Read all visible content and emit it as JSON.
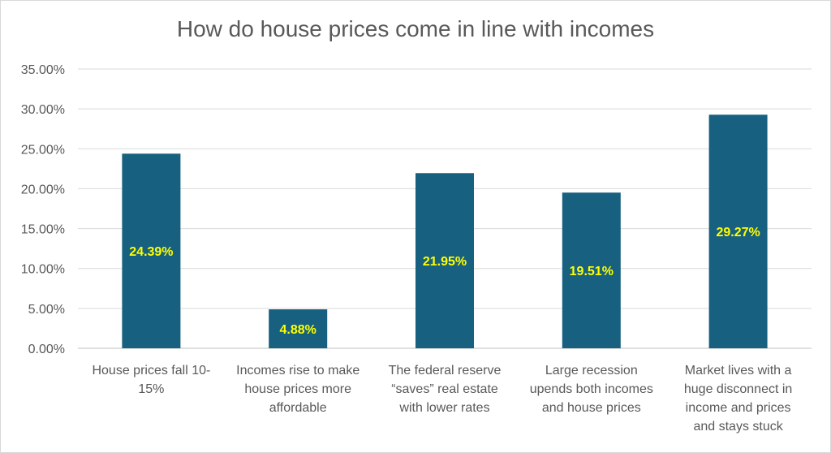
{
  "chart_data": {
    "type": "bar",
    "title": "How do house prices come in line with incomes",
    "xlabel": "",
    "ylabel": "",
    "categories": [
      [
        "House prices fall 10-",
        "15%"
      ],
      [
        "Incomes rise to make",
        "house prices more",
        "affordable"
      ],
      [
        "The federal reserve",
        "“saves” real estate",
        "with lower rates"
      ],
      [
        "Large recession",
        "upends both incomes",
        "and house prices"
      ],
      [
        "Market lives with a",
        "huge disconnect in",
        "income and prices",
        "and stays stuck"
      ]
    ],
    "values": [
      24.39,
      4.88,
      21.95,
      19.51,
      29.27
    ],
    "data_labels": [
      "24.39%",
      "4.88%",
      "21.95%",
      "19.51%",
      "29.27%"
    ],
    "ylim": [
      0,
      35
    ],
    "yticks": [
      "0.00%",
      "5.00%",
      "10.00%",
      "15.00%",
      "20.00%",
      "25.00%",
      "30.00%",
      "35.00%"
    ],
    "ytick_values": [
      0,
      5,
      10,
      15,
      20,
      25,
      30,
      35
    ],
    "grid": true,
    "legend": "none",
    "colors": {
      "bar": "#17607f",
      "label": "#ffff00",
      "grid": "#d9d9d9",
      "text": "#595959"
    }
  }
}
